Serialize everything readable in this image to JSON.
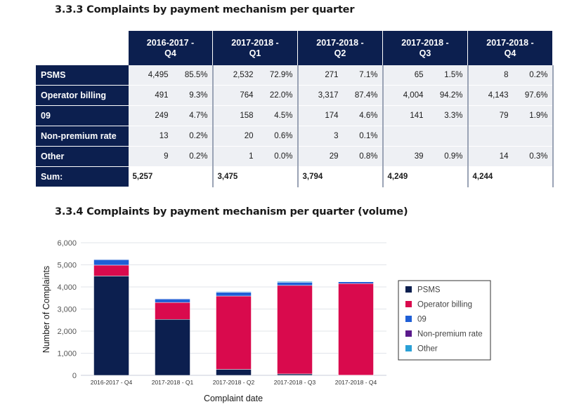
{
  "table_section": {
    "title": "3.3.3 Complaints by payment mechanism per quarter",
    "headers": [
      "2016-2017 - Q4",
      "2017-2018 - Q1",
      "2017-2018 - Q2",
      "2017-2018 - Q3",
      "2017-2018 - Q4"
    ],
    "header_lines": [
      [
        "2016-2017 -",
        "Q4"
      ],
      [
        "2017-2018 -",
        "Q1"
      ],
      [
        "2017-2018 -",
        "Q2"
      ],
      [
        "2017-2018 -",
        "Q3"
      ],
      [
        "2017-2018 -",
        "Q4"
      ]
    ],
    "rows": [
      {
        "label": "PSMS",
        "cells": [
          [
            "4,495",
            "85.5%"
          ],
          [
            "2,532",
            "72.9%"
          ],
          [
            "271",
            "7.1%"
          ],
          [
            "65",
            "1.5%"
          ],
          [
            "8",
            "0.2%"
          ]
        ]
      },
      {
        "label": "Operator billing",
        "cells": [
          [
            "491",
            "9.3%"
          ],
          [
            "764",
            "22.0%"
          ],
          [
            "3,317",
            "87.4%"
          ],
          [
            "4,004",
            "94.2%"
          ],
          [
            "4,143",
            "97.6%"
          ]
        ]
      },
      {
        "label": "09",
        "cells": [
          [
            "249",
            "4.7%"
          ],
          [
            "158",
            "4.5%"
          ],
          [
            "174",
            "4.6%"
          ],
          [
            "141",
            "3.3%"
          ],
          [
            "79",
            "1.9%"
          ]
        ]
      },
      {
        "label": "Non-premium rate",
        "cells": [
          [
            "13",
            "0.2%"
          ],
          [
            "20",
            "0.6%"
          ],
          [
            "3",
            "0.1%"
          ],
          [
            "",
            ""
          ],
          [
            "",
            ""
          ]
        ]
      },
      {
        "label": "Other",
        "cells": [
          [
            "9",
            "0.2%"
          ],
          [
            "1",
            "0.0%"
          ],
          [
            "29",
            "0.8%"
          ],
          [
            "39",
            "0.9%"
          ],
          [
            "14",
            "0.3%"
          ]
        ]
      },
      {
        "label": "Sum:",
        "cells": [
          [
            "5,257",
            ""
          ],
          [
            "3,475",
            ""
          ],
          [
            "3,794",
            ""
          ],
          [
            "4,249",
            ""
          ],
          [
            "4,244",
            ""
          ]
        ]
      }
    ]
  },
  "chart_section": {
    "title": "3.3.4 Complaints by payment mechanism per quarter (volume)"
  },
  "chart_data": {
    "type": "bar",
    "stacked": true,
    "title": "",
    "xlabel": "Complaint date",
    "ylabel": "Number of Complaints",
    "categories": [
      "2016-2017 - Q4",
      "2017-2018 - Q1",
      "2017-2018 - Q2",
      "2017-2018 - Q3",
      "2017-2018 - Q4"
    ],
    "ylim": [
      0,
      6000
    ],
    "yticks": [
      0,
      1000,
      2000,
      3000,
      4000,
      5000,
      6000
    ],
    "ytick_labels": [
      "0",
      "1,000",
      "2,000",
      "3,000",
      "4,000",
      "5,000",
      "6,000"
    ],
    "grid": true,
    "legend_position": "right",
    "series": [
      {
        "name": "PSMS",
        "color": "#0c1f4f",
        "values": [
          4495,
          2532,
          271,
          65,
          8
        ]
      },
      {
        "name": "Operator billing",
        "color": "#d90a4d",
        "values": [
          491,
          764,
          3317,
          4004,
          4143
        ]
      },
      {
        "name": "09",
        "color": "#1f5fd6",
        "values": [
          249,
          158,
          174,
          141,
          79
        ]
      },
      {
        "name": "Non-premium rate",
        "color": "#5a1a8c",
        "values": [
          13,
          20,
          3,
          0,
          0
        ]
      },
      {
        "name": "Other",
        "color": "#2aa0d6",
        "values": [
          9,
          1,
          29,
          39,
          14
        ]
      }
    ]
  }
}
